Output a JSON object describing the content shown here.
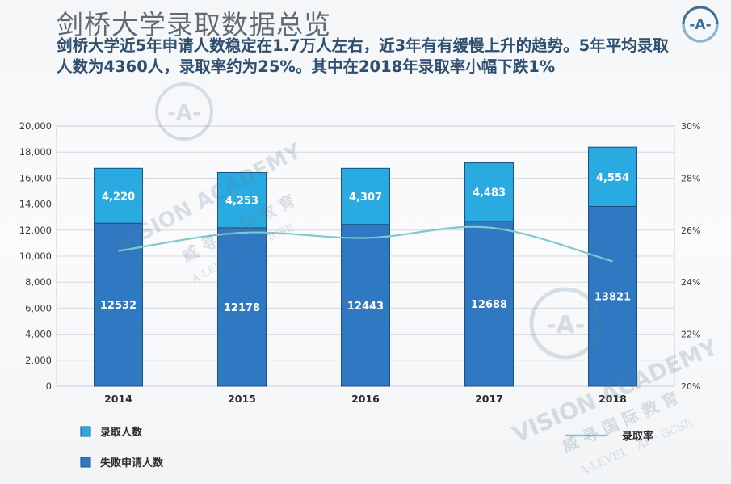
{
  "header": {
    "title": "剑桥大学录取数据总览",
    "subtitle": "剑桥大学近5年申请人数稳定在1.7万人左右，近3年有有缓慢上升的趋势。5年平均录取人数为4360人，录取率约为25%。其中在2018年录取率小幅下跌1%"
  },
  "logo": {
    "name": "vision-academy-logo",
    "text": "-A-"
  },
  "watermark": {
    "text1": "VISION ACADEMY",
    "text2": "威 寻 国 际 教 育",
    "text3": "A-LEVEL · AP · GCSE"
  },
  "chart_data": {
    "type": "bar",
    "stacked": true,
    "categories": [
      "2014",
      "2015",
      "2016",
      "2017",
      "2018"
    ],
    "series": [
      {
        "name": "失败申请人数",
        "values": [
          12532,
          12178,
          12443,
          12688,
          13821
        ],
        "color": "#2f78c2"
      },
      {
        "name": "录取人数",
        "values": [
          4220,
          4253,
          4307,
          4483,
          4554
        ],
        "color": "#29aae1"
      }
    ],
    "line_series": {
      "name": "录取率",
      "values": [
        25.2,
        25.9,
        25.7,
        26.1,
        24.8
      ],
      "color": "#7fc8cc",
      "axis": "right"
    },
    "y_left": {
      "min": 0,
      "max": 20000,
      "step": 2000,
      "ticks": [
        "0",
        "2,000",
        "4,000",
        "6,000",
        "8,000",
        "10,000",
        "12,000",
        "14,000",
        "16,000",
        "18,000",
        "20,000"
      ]
    },
    "y_right": {
      "min": 20,
      "max": 30,
      "step": 2,
      "ticks": [
        "20%",
        "22%",
        "24%",
        "26%",
        "28%",
        "30%"
      ]
    },
    "data_labels": {
      "bottom": [
        "12532",
        "12178",
        "12443",
        "12688",
        "13821"
      ],
      "top": [
        "4,220",
        "4,253",
        "4,307",
        "4,483",
        "4,554"
      ]
    },
    "legend": {
      "placement": "bottom",
      "items": [
        "录取人数",
        "失败申请人数",
        "录取率"
      ]
    },
    "grid": true
  }
}
